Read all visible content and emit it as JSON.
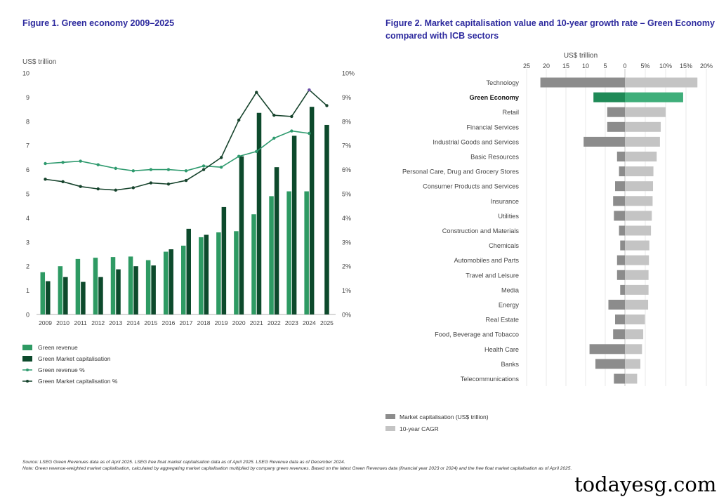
{
  "figure1": {
    "title": "Figure 1. Green economy 2009–2025",
    "y_left_label": "US$ trillion",
    "legend": {
      "green_revenue": "Green revenue",
      "green_market_cap": "Green Market capitalisation",
      "green_revenue_pct": "Green revenue %",
      "green_market_cap_pct": "Green Market capitalisation %"
    },
    "colors": {
      "revenue": "#2e9a63",
      "market_cap": "#0d4a2c",
      "revenue_line": "#2e9a6e",
      "market_cap_line": "#16432c",
      "highlight": "#6a4ca8"
    }
  },
  "figure2": {
    "title": "Figure 2. Market capitalisation value and 10-year growth rate – Green Economy compared with ICB sectors",
    "axis_label": "US$ trillion",
    "legend": {
      "market_cap": "Market capitalisation (US$ trillion)",
      "cagr": "10-year CAGR"
    },
    "colors": {
      "market_cap": "#8c8c8c",
      "cagr": "#c4c4c4",
      "highlight_cap": "#1f8a57",
      "highlight_cagr": "#3fae7a"
    }
  },
  "notes": {
    "source": "Source: LSEG Green Revenues data as of April 2025. LSEG free float market capitalisation data as of April 2025. LSEG Revenue data as of December 2024.",
    "note": "Note: Green revenue-weighted market capitalisation, calculated by aggregating market capitalisation multiplied by company green revenues. Based on the latest Green Revenues data (financial year 2023 or 2024) and the free float market capitalisation as of April 2025."
  },
  "watermark": "todayesg.com",
  "chart_data": [
    {
      "type": "bar+line",
      "title": "Figure 1. Green economy 2009–2025",
      "categories": [
        "2009",
        "2010",
        "2011",
        "2012",
        "2013",
        "2014",
        "2015",
        "2016",
        "2017",
        "2018",
        "2019",
        "2020",
        "2021",
        "2022",
        "2023",
        "2024",
        "2025"
      ],
      "ylabel": "US$ trillion",
      "ylim": [
        0,
        10
      ],
      "yticks": [
        "0",
        "1",
        "2",
        "3",
        "4",
        "5",
        "6",
        "7",
        "8",
        "9",
        "10"
      ],
      "y2lim": [
        0,
        10
      ],
      "y2ticks": [
        "0%",
        "1%",
        "2%",
        "3%",
        "4%",
        "5%",
        "6%",
        "7%",
        "8%",
        "9%",
        "10%"
      ],
      "series": [
        {
          "name": "Green revenue",
          "kind": "bar",
          "values": [
            1.75,
            2.0,
            2.3,
            2.35,
            2.38,
            2.4,
            2.25,
            2.6,
            2.85,
            3.2,
            3.4,
            3.45,
            4.15,
            4.9,
            5.1,
            5.1,
            null
          ]
        },
        {
          "name": "Green Market capitalisation",
          "kind": "bar",
          "values": [
            1.38,
            1.55,
            1.35,
            1.55,
            1.87,
            2.0,
            2.03,
            2.7,
            3.55,
            3.3,
            4.45,
            6.55,
            8.35,
            6.1,
            7.4,
            8.6,
            7.85
          ]
        },
        {
          "name": "Green revenue %",
          "kind": "line",
          "values": [
            6.25,
            6.3,
            6.35,
            6.2,
            6.05,
            5.95,
            6.0,
            6.0,
            5.95,
            6.15,
            6.1,
            6.55,
            6.75,
            7.3,
            7.6,
            7.5,
            null
          ]
        },
        {
          "name": "Green Market capitalisation %",
          "kind": "line",
          "values": [
            5.6,
            5.5,
            5.3,
            5.2,
            5.15,
            5.25,
            5.45,
            5.4,
            5.55,
            6.0,
            6.5,
            8.05,
            9.2,
            8.25,
            8.2,
            9.3,
            8.65
          ]
        }
      ]
    },
    {
      "type": "bar",
      "orientation": "horizontal-diverging",
      "title": "Figure 2. Market capitalisation value and 10-year growth rate – Green Economy compared with ICB sectors",
      "categories": [
        "Technology",
        "Green Economy",
        "Retail",
        "Financial Services",
        "Industrial Goods and Services",
        "Basic Resources",
        "Personal Care, Drug and Grocery Stores",
        "Consumer Products and Services",
        "Insurance",
        "Utilities",
        "Construction and Materials",
        "Chemicals",
        "Automobiles and Parts",
        "Travel and Leisure",
        "Media",
        "Energy",
        "Real Estate",
        "Food, Beverage and Tobacco",
        "Health Care",
        "Banks",
        "Telecommunications"
      ],
      "highlight": "Green Economy",
      "left_axis": {
        "label": "US$ trillion",
        "ticks": [
          "25",
          "20",
          "15",
          "10",
          "5",
          "0"
        ],
        "range": [
          0,
          25
        ]
      },
      "right_axis": {
        "ticks": [
          "5%",
          "10%",
          "15%",
          "20%"
        ],
        "range": [
          0,
          20
        ]
      },
      "series": [
        {
          "name": "Market capitalisation (US$ trillion)",
          "values": [
            21.5,
            8.0,
            4.5,
            4.5,
            10.5,
            2.0,
            1.5,
            2.5,
            3.0,
            2.8,
            1.5,
            1.2,
            2.0,
            2.0,
            1.2,
            4.2,
            2.5,
            3.0,
            9.0,
            7.5,
            2.8
          ]
        },
        {
          "name": "10-year CAGR",
          "values": [
            17.8,
            14.3,
            10.0,
            8.8,
            8.6,
            7.8,
            7.0,
            6.9,
            6.8,
            6.6,
            6.4,
            6.0,
            5.9,
            5.8,
            5.8,
            5.7,
            4.9,
            4.5,
            4.2,
            3.8,
            3.0
          ]
        }
      ]
    }
  ]
}
